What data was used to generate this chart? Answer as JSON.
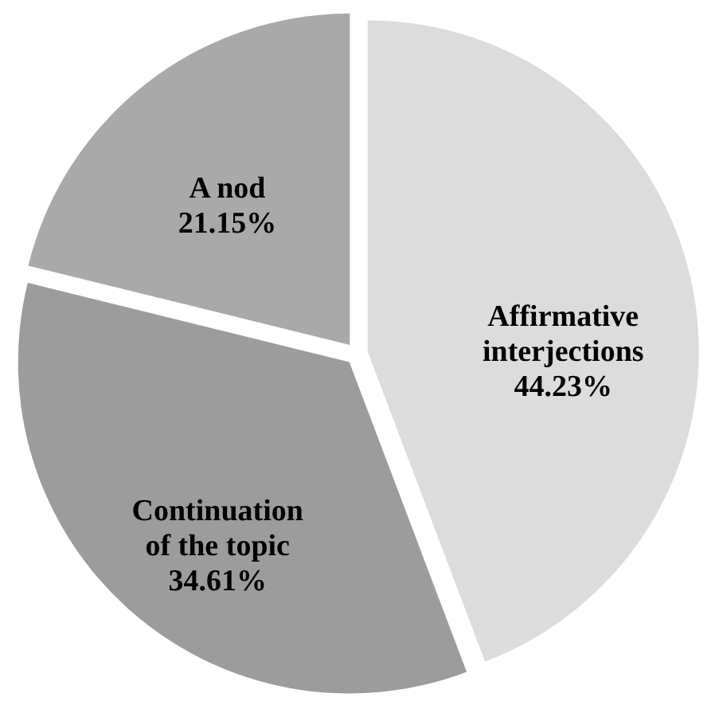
{
  "chart_data": {
    "type": "pie",
    "categories": [
      "Affirmative\ninterjections",
      "Continuation\nof the topic",
      "A nod"
    ],
    "values": [
      44.23,
      34.61,
      21.15
    ],
    "colors": [
      "#dcdcdc",
      "#9c9c9c",
      "#a9a9a9"
    ],
    "value_labels": [
      "44.23%",
      "34.61%",
      "21.15%"
    ],
    "legend": false
  }
}
